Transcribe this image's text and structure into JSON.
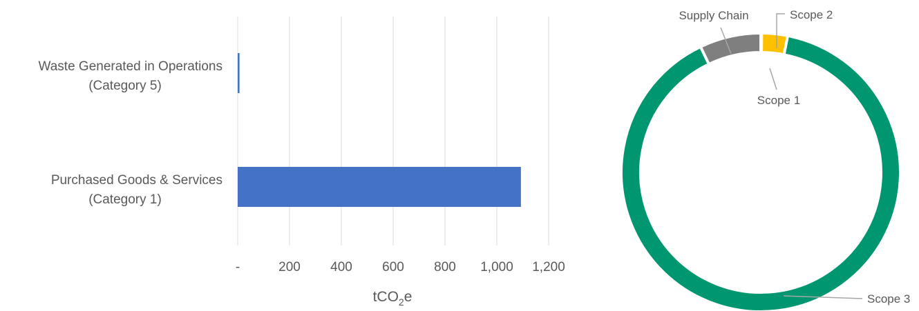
{
  "chart_data": [
    {
      "type": "bar",
      "orientation": "horizontal",
      "categories": [
        [
          "Waste Generated in Operations",
          "(Category 5)"
        ],
        [
          "Purchased Goods & Services",
          "(Category 1)"
        ]
      ],
      "values": [
        7,
        1093
      ],
      "xlabel": "tCO2e",
      "xlabel_parts": {
        "main": "tCO",
        "sub": "2",
        "tail": "e"
      },
      "xlim": [
        0,
        1200
      ],
      "ticks": [
        0,
        200,
        400,
        600,
        800,
        1000,
        1200
      ],
      "tick_labels": [
        "-",
        "200",
        "400",
        "600",
        "800",
        "1,000",
        "1,200"
      ],
      "grid": "vertical",
      "colors": {
        "bar": "#4472C4",
        "grid": "#D9D9D9"
      }
    },
    {
      "type": "pie",
      "variant": "donut",
      "slices": [
        {
          "label": "Scope 1",
          "value": 0.1,
          "color": "#4472C4"
        },
        {
          "label": "Scope 2",
          "value": 3.0,
          "color": "#FFC000"
        },
        {
          "label": "Scope 3",
          "value": 89.8,
          "color": "#009670"
        },
        {
          "label": "Supply Chain",
          "value": 7.1,
          "color": "#7F7F7F"
        }
      ]
    }
  ]
}
